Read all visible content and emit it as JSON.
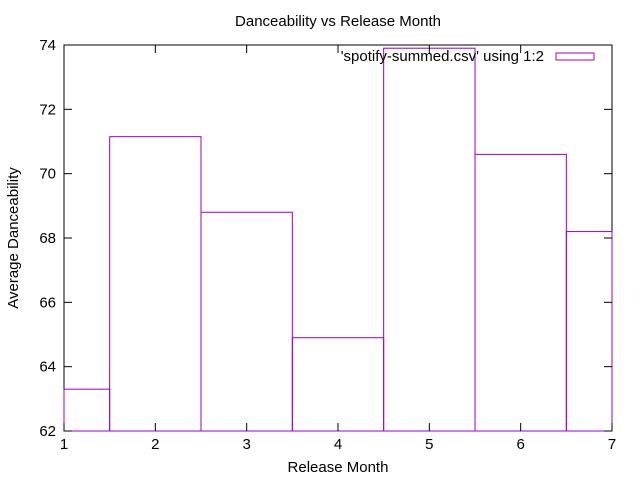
{
  "chart_data": {
    "type": "bar",
    "style": "histogram-steps",
    "title": "Danceability vs Release Month",
    "xlabel": "Release Month",
    "ylabel": "Average Danceability",
    "xlim": [
      1,
      7
    ],
    "ylim": [
      62,
      74
    ],
    "xticks": [
      "1",
      "2",
      "3",
      "4",
      "5",
      "6",
      "7"
    ],
    "yticks": [
      "62",
      "64",
      "66",
      "68",
      "70",
      "72",
      "74"
    ],
    "grid": false,
    "legend_position": "top-right",
    "series": [
      {
        "name": "'spotify-summed.csv' using 1:2",
        "color": "#9400d3",
        "x": [
          1,
          2,
          3,
          4,
          5,
          6,
          7
        ],
        "values": [
          63.3,
          71.15,
          68.8,
          64.9,
          73.9,
          70.6,
          68.2
        ]
      }
    ]
  }
}
